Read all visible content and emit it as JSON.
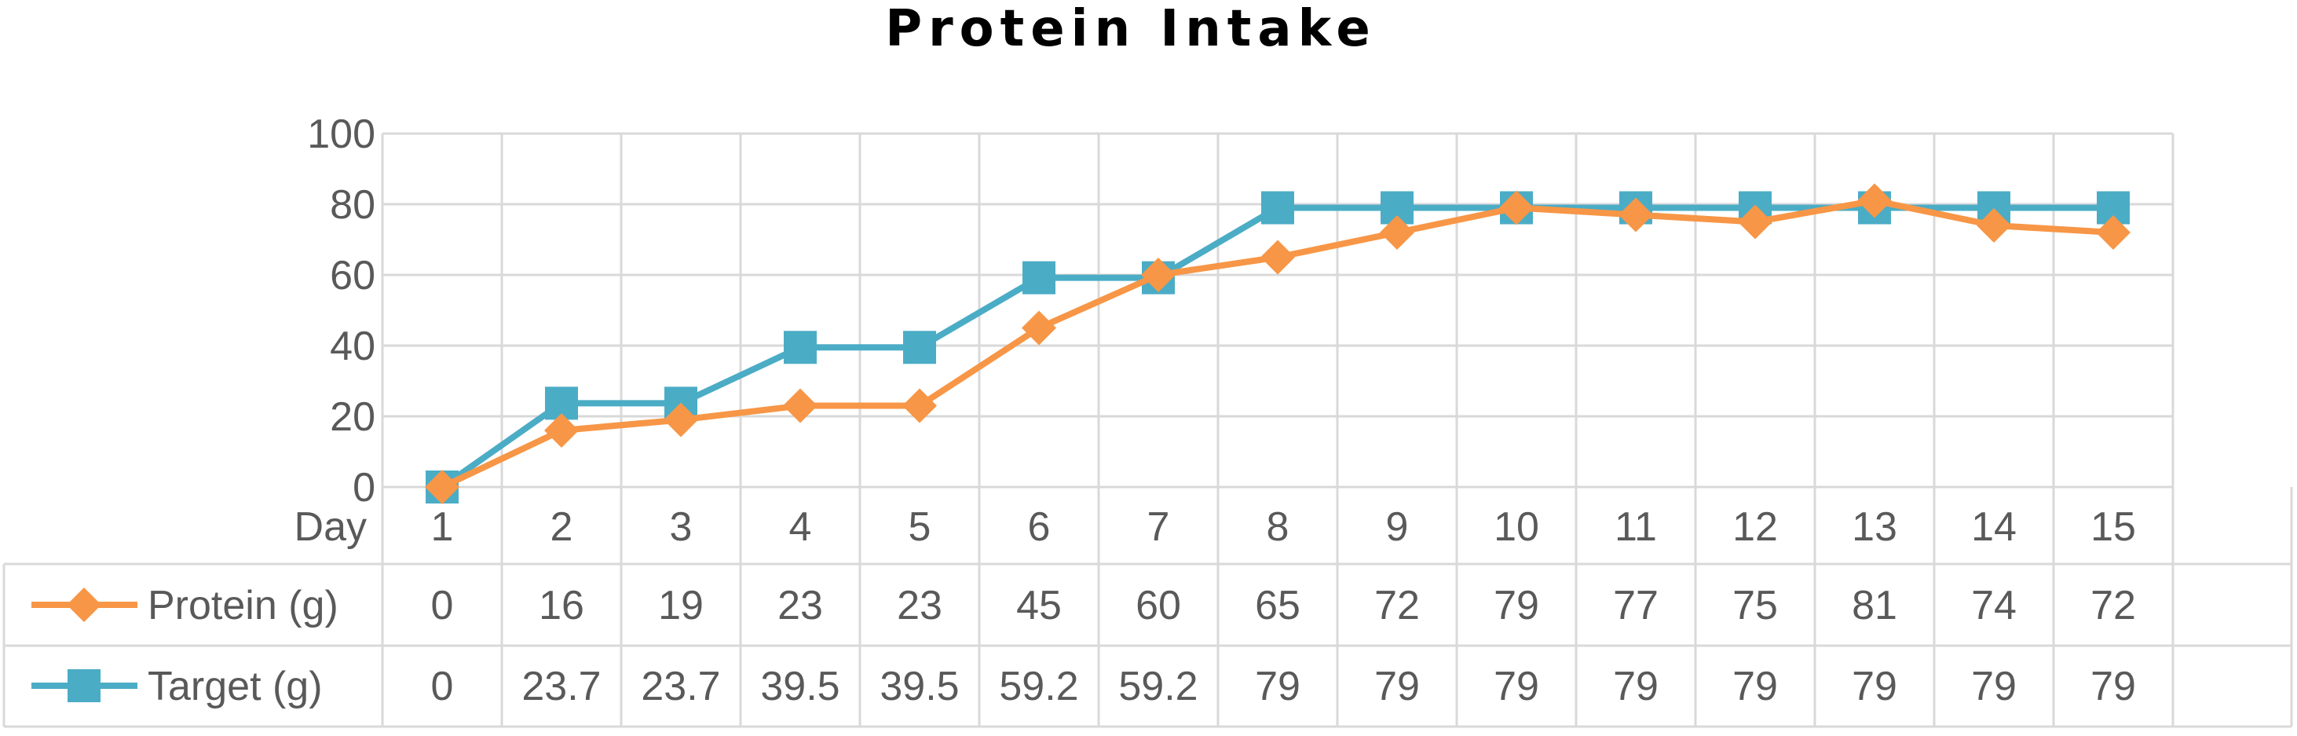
{
  "chart_data": {
    "type": "line",
    "title": "Protein Intake",
    "xlabel": "Day",
    "ylabel": "",
    "categories": [
      "1",
      "2",
      "3",
      "4",
      "5",
      "6",
      "7",
      "8",
      "9",
      "10",
      "11",
      "12",
      "13",
      "14",
      "15"
    ],
    "ylim": [
      0,
      100
    ],
    "yticks": [
      "0",
      "20",
      "40",
      "60",
      "80",
      "100"
    ],
    "grid": true,
    "legend": "data-table-left",
    "series": [
      {
        "name": "Protein (g)",
        "color": "#f79646",
        "marker": "diamond",
        "values": [
          0,
          16,
          19,
          23,
          23,
          45,
          60,
          65,
          72,
          79,
          77,
          75,
          81,
          74,
          72
        ],
        "labels": [
          "0",
          "16",
          "19",
          "23",
          "23",
          "45",
          "60",
          "65",
          "72",
          "79",
          "77",
          "75",
          "81",
          "74",
          "72"
        ]
      },
      {
        "name": "Target (g)",
        "color": "#4bacc6",
        "marker": "square",
        "values": [
          0,
          23.7,
          23.7,
          39.5,
          39.5,
          59.2,
          59.2,
          79,
          79,
          79,
          79,
          79,
          79,
          79,
          79
        ],
        "labels": [
          "0",
          "23.7",
          "23.7",
          "39.5",
          "39.5",
          "59.2",
          "59.2",
          "79",
          "79",
          "79",
          "79",
          "79",
          "79",
          "79",
          "79"
        ]
      }
    ]
  }
}
